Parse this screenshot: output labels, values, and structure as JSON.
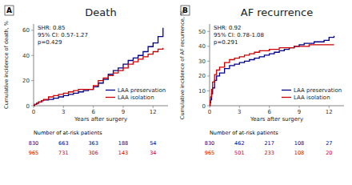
{
  "chart_data": [
    {
      "type": "step",
      "title": "Death",
      "panel_label": "A",
      "x_label": "Years after surgery",
      "y_label": "Cumulative incidence of death, %",
      "xlim": [
        0,
        13.5
      ],
      "ylim": [
        0,
        65
      ],
      "xticks": [
        0,
        3,
        6,
        9,
        12
      ],
      "yticks": [
        0,
        20,
        40,
        60
      ],
      "grid": false,
      "legend": "lower right",
      "annotations": [
        "SHR: 0.85",
        "95% CI: 0.57-1.27",
        "p=0.429"
      ],
      "at_risk_label": "Number of at-risk patients",
      "at_risk_x": [
        0,
        3,
        6,
        9,
        12
      ],
      "series": [
        {
          "name": "LAA preservation",
          "color": "#00008B",
          "x": [
            0,
            0.1,
            0.3,
            0.5,
            0.8,
            1.0,
            1.5,
            2.0,
            2.5,
            3.0,
            3.5,
            4.0,
            4.5,
            5.0,
            5.5,
            6.0,
            6.5,
            7.0,
            7.5,
            8.0,
            8.5,
            9.0,
            9.5,
            10.0,
            10.5,
            11.0,
            11.5,
            12.0,
            12.5,
            13.0
          ],
          "values": [
            0,
            1,
            2,
            3,
            4,
            4.5,
            5,
            6,
            7,
            8,
            9,
            10,
            11,
            12,
            13,
            15,
            18,
            21,
            25,
            28,
            30,
            33,
            36,
            38,
            40,
            43,
            47,
            50,
            55,
            62
          ],
          "at_risk": [
            830,
            663,
            363,
            188,
            54
          ]
        },
        {
          "name": "LAA isolation",
          "color": "#CC0000",
          "x": [
            0,
            0.1,
            0.3,
            0.5,
            0.8,
            1.0,
            1.5,
            2.0,
            2.5,
            3.0,
            3.5,
            4.0,
            4.5,
            5.0,
            5.5,
            6.0,
            6.5,
            7.0,
            7.5,
            8.0,
            8.5,
            9.0,
            9.5,
            10.0,
            10.5,
            11.0,
            11.5,
            12.0,
            12.5,
            13.0
          ],
          "values": [
            0,
            1,
            2,
            3,
            4,
            5,
            7,
            8,
            9,
            10,
            11,
            12,
            13,
            13,
            13,
            16,
            20,
            22,
            24,
            26,
            28,
            30,
            33,
            35,
            37,
            39,
            41,
            43,
            45,
            46
          ],
          "at_risk": [
            965,
            731,
            306,
            143,
            34
          ]
        }
      ]
    },
    {
      "type": "step",
      "title": "AF recurrence",
      "panel_label": "B",
      "x_label": "Years after surgery",
      "y_label": "Cumulative incidence of AF recurrence, %",
      "xlim": [
        0,
        13.5
      ],
      "ylim": [
        0,
        55
      ],
      "xticks": [
        0,
        3,
        6,
        9,
        12
      ],
      "yticks": [
        0,
        10,
        20,
        30,
        40,
        50
      ],
      "grid": false,
      "legend": "lower right",
      "annotations": [
        "SHR: 0.92",
        "95% CI: 0.78-1.08",
        "p=0.291"
      ],
      "at_risk_label": "Number of at-risk patients",
      "at_risk_x": [
        0,
        3,
        6,
        9,
        12
      ],
      "series": [
        {
          "name": "LAA preservation",
          "color": "#00008B",
          "x": [
            0,
            0.05,
            0.1,
            0.2,
            0.3,
            0.5,
            0.7,
            1.0,
            1.5,
            2.0,
            2.5,
            3.0,
            3.5,
            4.0,
            4.5,
            5.0,
            5.5,
            6.0,
            6.5,
            7.0,
            7.5,
            8.0,
            8.5,
            9.0,
            9.5,
            10.0,
            10.5,
            11.0,
            11.5,
            12.0,
            12.5
          ],
          "values": [
            0,
            2,
            4,
            8,
            12,
            17,
            20,
            22,
            25,
            27,
            28,
            29,
            30,
            31,
            32,
            33,
            34,
            35,
            36,
            37,
            38,
            39,
            40,
            41,
            42,
            42,
            43,
            43,
            44,
            46,
            47
          ],
          "at_risk": [
            830,
            462,
            217,
            108,
            27
          ]
        },
        {
          "name": "LAA isolation",
          "color": "#CC0000",
          "x": [
            0,
            0.05,
            0.1,
            0.2,
            0.3,
            0.5,
            0.7,
            1.0,
            1.5,
            2.0,
            2.5,
            3.0,
            3.5,
            4.0,
            4.5,
            5.0,
            5.5,
            6.0,
            6.5,
            7.0,
            7.5,
            8.0,
            8.5,
            9.0,
            9.5,
            10.0,
            10.5,
            11.0,
            11.5,
            12.0,
            12.5
          ],
          "values": [
            0,
            3,
            6,
            11,
            16,
            21,
            24,
            26,
            29,
            31,
            32,
            33,
            34,
            35,
            36,
            37,
            37,
            38,
            38,
            39,
            39,
            39,
            40,
            40,
            40,
            41,
            41,
            41,
            41,
            41,
            41
          ],
          "at_risk": [
            965,
            501,
            233,
            108,
            20
          ]
        }
      ]
    }
  ]
}
